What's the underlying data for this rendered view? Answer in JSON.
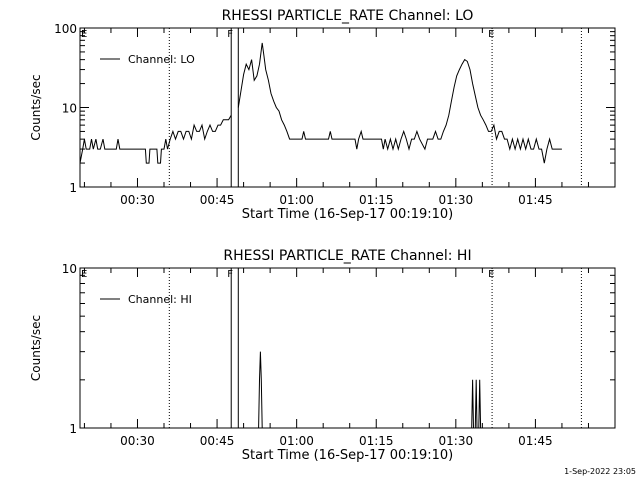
{
  "footer_date": "1-Sep-2022 23:05",
  "chart_data": [
    {
      "type": "line",
      "title": "RHESSI PARTICLE_RATE Channel: LO",
      "xlabel": "Start Time (16-Sep-17 00:19:10)",
      "ylabel": "Counts/sec",
      "y_scale": "log",
      "ylim": [
        1,
        100
      ],
      "xlim": [
        "00:19:10",
        "02:00:00"
      ],
      "x_ticks": [
        "00:30",
        "00:45",
        "01:00",
        "01:15",
        "01:30",
        "01:45"
      ],
      "y_ticks": [
        "1",
        "10",
        "100"
      ],
      "legend": {
        "label": "Channel: LO",
        "placement": "top-left"
      },
      "markers": [
        {
          "label": "E",
          "time": "00:19:10",
          "style": "dotted"
        },
        {
          "label": "",
          "time": "00:36:00",
          "style": "dotted"
        },
        {
          "label": "F",
          "time": "00:47:40",
          "style": "solid"
        },
        {
          "label": "",
          "time": "00:49:00",
          "style": "solid"
        },
        {
          "label": "E",
          "time": "01:36:50",
          "style": "dotted"
        },
        {
          "label": "",
          "time": "01:53:40",
          "style": "dotted"
        }
      ],
      "gaps": [
        [
          "00:47:50",
          "00:49:00"
        ]
      ],
      "series": [
        {
          "name": "Channel: LO",
          "points": [
            [
              "00:19:10",
              2
            ],
            [
              "00:19:40",
              3
            ],
            [
              "00:20:00",
              4
            ],
            [
              "00:20:20",
              3
            ],
            [
              "00:21:00",
              3
            ],
            [
              "00:21:20",
              4
            ],
            [
              "00:21:40",
              3
            ],
            [
              "00:22:10",
              4
            ],
            [
              "00:22:30",
              3
            ],
            [
              "00:23:00",
              3
            ],
            [
              "00:23:30",
              4
            ],
            [
              "00:23:50",
              3
            ],
            [
              "00:26:00",
              3
            ],
            [
              "00:26:20",
              4
            ],
            [
              "00:26:40",
              3
            ],
            [
              "00:31:30",
              3
            ],
            [
              "00:31:40",
              2
            ],
            [
              "00:32:10",
              2
            ],
            [
              "00:32:20",
              3
            ],
            [
              "00:33:40",
              3
            ],
            [
              "00:33:50",
              2
            ],
            [
              "00:34:20",
              2
            ],
            [
              "00:34:30",
              3
            ],
            [
              "00:35:00",
              3
            ],
            [
              "00:35:20",
              4
            ],
            [
              "00:35:40",
              3
            ],
            [
              "00:36:10",
              4
            ],
            [
              "00:36:40",
              5
            ],
            [
              "00:37:10",
              4
            ],
            [
              "00:37:40",
              5
            ],
            [
              "00:38:10",
              5
            ],
            [
              "00:38:40",
              4
            ],
            [
              "00:39:10",
              5
            ],
            [
              "00:39:40",
              5
            ],
            [
              "00:40:10",
              4
            ],
            [
              "00:40:40",
              6
            ],
            [
              "00:41:10",
              5
            ],
            [
              "00:41:40",
              5
            ],
            [
              "00:42:10",
              6
            ],
            [
              "00:42:40",
              4
            ],
            [
              "00:43:10",
              5
            ],
            [
              "00:43:40",
              6
            ],
            [
              "00:44:10",
              5
            ],
            [
              "00:44:40",
              5
            ],
            [
              "00:45:10",
              6
            ],
            [
              "00:45:40",
              6
            ],
            [
              "00:46:10",
              7
            ],
            [
              "00:46:40",
              7
            ],
            [
              "00:47:10",
              7
            ],
            [
              "00:47:40",
              8
            ],
            [
              "00:49:00",
              10
            ],
            [
              "00:49:30",
              16
            ],
            [
              "00:50:00",
              26
            ],
            [
              "00:50:30",
              35
            ],
            [
              "00:51:00",
              30
            ],
            [
              "00:51:30",
              40
            ],
            [
              "00:52:00",
              22
            ],
            [
              "00:52:30",
              25
            ],
            [
              "00:53:00",
              35
            ],
            [
              "00:53:30",
              65
            ],
            [
              "00:53:50",
              45
            ],
            [
              "00:54:10",
              30
            ],
            [
              "00:54:40",
              22
            ],
            [
              "00:55:10",
              15
            ],
            [
              "00:55:40",
              12
            ],
            [
              "00:56:10",
              10
            ],
            [
              "00:56:40",
              9
            ],
            [
              "00:57:10",
              7
            ],
            [
              "00:57:40",
              6
            ],
            [
              "00:58:10",
              5
            ],
            [
              "00:58:40",
              4
            ],
            [
              "01:01:00",
              4
            ],
            [
              "01:01:20",
              5
            ],
            [
              "01:01:40",
              4
            ],
            [
              "01:06:00",
              4
            ],
            [
              "01:06:20",
              5
            ],
            [
              "01:06:40",
              4
            ],
            [
              "01:11:00",
              4
            ],
            [
              "01:11:20",
              3
            ],
            [
              "01:11:40",
              4
            ],
            [
              "01:12:10",
              5
            ],
            [
              "01:12:30",
              4
            ],
            [
              "01:16:00",
              4
            ],
            [
              "01:16:20",
              3
            ],
            [
              "01:16:40",
              4
            ],
            [
              "01:17:10",
              3
            ],
            [
              "01:17:40",
              4
            ],
            [
              "01:18:10",
              3
            ],
            [
              "01:18:40",
              4
            ],
            [
              "01:19:10",
              3
            ],
            [
              "01:19:40",
              4
            ],
            [
              "01:20:10",
              5
            ],
            [
              "01:20:40",
              4
            ],
            [
              "01:21:10",
              3
            ],
            [
              "01:21:40",
              4
            ],
            [
              "01:22:10",
              4
            ],
            [
              "01:22:40",
              5
            ],
            [
              "01:23:10",
              4
            ],
            [
              "01:24:10",
              3
            ],
            [
              "01:24:40",
              4
            ],
            [
              "01:25:40",
              4
            ],
            [
              "01:26:10",
              5
            ],
            [
              "01:26:40",
              4
            ],
            [
              "01:27:10",
              4
            ],
            [
              "01:27:40",
              5
            ],
            [
              "01:28:10",
              6
            ],
            [
              "01:28:40",
              8
            ],
            [
              "01:29:10",
              12
            ],
            [
              "01:29:40",
              18
            ],
            [
              "01:30:10",
              25
            ],
            [
              "01:30:40",
              30
            ],
            [
              "01:31:10",
              35
            ],
            [
              "01:31:40",
              40
            ],
            [
              "01:32:10",
              38
            ],
            [
              "01:32:40",
              30
            ],
            [
              "01:33:10",
              20
            ],
            [
              "01:33:40",
              14
            ],
            [
              "01:34:10",
              10
            ],
            [
              "01:34:40",
              8
            ],
            [
              "01:35:10",
              7
            ],
            [
              "01:35:40",
              6
            ],
            [
              "01:36:10",
              5
            ],
            [
              "01:36:40",
              5
            ],
            [
              "01:37:10",
              6
            ],
            [
              "01:37:40",
              4
            ],
            [
              "01:38:10",
              5
            ],
            [
              "01:38:40",
              5
            ],
            [
              "01:39:10",
              4
            ],
            [
              "01:39:40",
              4
            ],
            [
              "01:40:10",
              3
            ],
            [
              "01:40:40",
              4
            ],
            [
              "01:41:10",
              3
            ],
            [
              "01:41:40",
              4
            ],
            [
              "01:42:10",
              3
            ],
            [
              "01:42:40",
              4
            ],
            [
              "01:43:10",
              3
            ],
            [
              "01:43:40",
              4
            ],
            [
              "01:44:10",
              3
            ],
            [
              "01:44:40",
              3
            ],
            [
              "01:45:10",
              4
            ],
            [
              "01:45:40",
              3
            ],
            [
              "01:46:10",
              3
            ],
            [
              "01:46:40",
              2
            ],
            [
              "01:47:10",
              3
            ],
            [
              "01:47:40",
              4
            ],
            [
              "01:48:10",
              3
            ],
            [
              "01:50:00",
              3
            ]
          ]
        }
      ]
    },
    {
      "type": "line",
      "title": "RHESSI PARTICLE_RATE Channel: HI",
      "xlabel": "Start Time (16-Sep-17 00:19:10)",
      "ylabel": "Counts/sec",
      "y_scale": "log",
      "ylim": [
        1,
        10
      ],
      "xlim": [
        "00:19:10",
        "02:00:00"
      ],
      "x_ticks": [
        "00:30",
        "00:45",
        "01:00",
        "01:15",
        "01:30",
        "01:45"
      ],
      "y_ticks": [
        "1",
        "10"
      ],
      "legend": {
        "label": "Channel: HI",
        "placement": "top-left"
      },
      "markers": [
        {
          "label": "E",
          "time": "00:19:10",
          "style": "dotted"
        },
        {
          "label": "",
          "time": "00:36:00",
          "style": "dotted"
        },
        {
          "label": "F",
          "time": "00:47:40",
          "style": "solid"
        },
        {
          "label": "",
          "time": "00:49:00",
          "style": "solid"
        },
        {
          "label": "E",
          "time": "01:36:50",
          "style": "dotted"
        },
        {
          "label": "",
          "time": "01:53:40",
          "style": "dotted"
        }
      ],
      "series": [
        {
          "name": "Channel: HI",
          "points": [
            [
              "00:52:50",
              1
            ],
            [
              "00:53:00",
              2
            ],
            [
              "00:53:10",
              3
            ],
            [
              "00:53:20",
              2
            ],
            [
              "00:53:30",
              1
            ],
            [
              "01:33:00",
              1
            ],
            [
              "01:33:10",
              2
            ],
            [
              "01:33:20",
              1
            ],
            [
              "01:33:40",
              1
            ],
            [
              "01:33:50",
              2
            ],
            [
              "01:34:00",
              1
            ],
            [
              "01:34:20",
              1
            ],
            [
              "01:34:30",
              2
            ],
            [
              "01:34:40",
              1
            ]
          ]
        }
      ]
    }
  ]
}
